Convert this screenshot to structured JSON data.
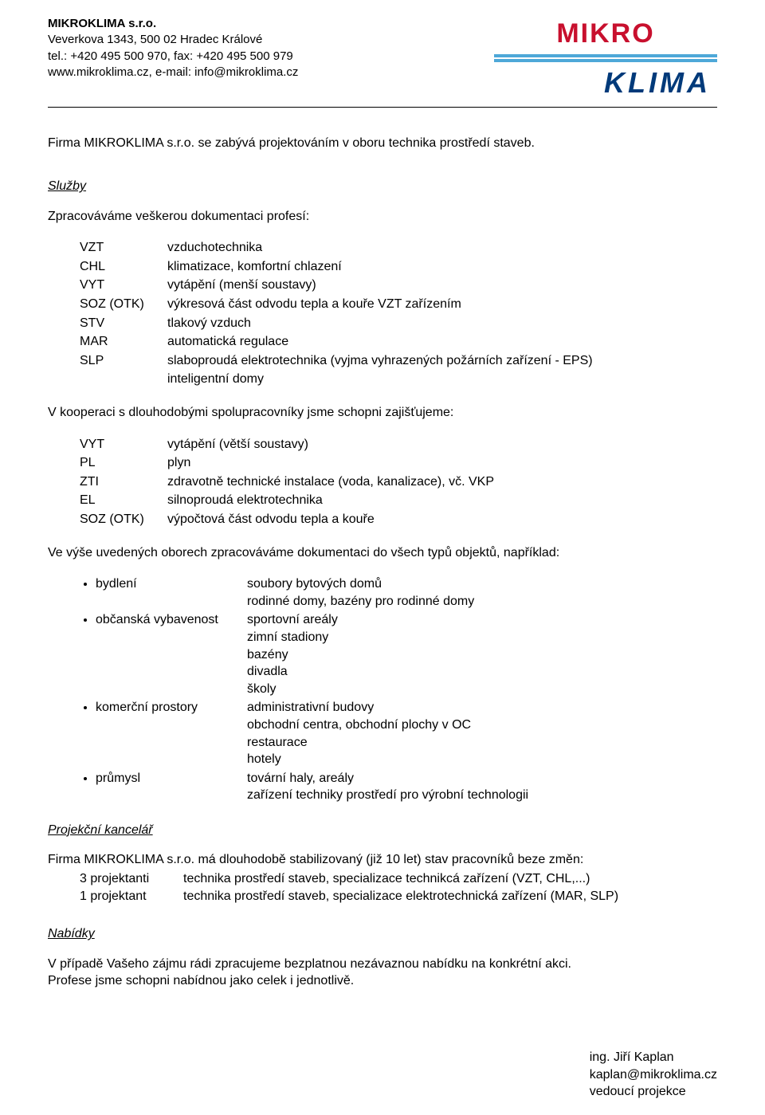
{
  "header": {
    "company": "MIKROKLIMA s.r.o.",
    "address": "Veverkova 1343, 500 02 Hradec Králové",
    "phone_line": "tel.: +420 495 500 970, fax: +420 495 500 979",
    "web_line": "www.mikroklima.cz, e-mail: info@mikroklima.cz"
  },
  "logo": {
    "mikro": "MIKRO",
    "klima": "KLIMA",
    "red": "#c8102e",
    "blue_bar": "#4ea8d8",
    "dark_blue": "#003a7a"
  },
  "intro": "Firma MIKROKLIMA s.r.o. se zabývá projektováním v oboru technika prostředí staveb.",
  "sections": {
    "sluzby_title": "Služby",
    "sluzby_intro": "Zpracováváme veškerou dokumentaci profesí:",
    "primary_list": [
      {
        "key": "VZT",
        "val": "vzduchotechnika"
      },
      {
        "key": "CHL",
        "val": "klimatizace, komfortní chlazení"
      },
      {
        "key": "VYT",
        "val": "vytápění (menší soustavy)"
      },
      {
        "key": "SOZ (OTK)",
        "val": "výkresová část odvodu tepla a kouře VZT zařízením"
      },
      {
        "key": "STV",
        "val": "tlakový vzduch"
      },
      {
        "key": "MAR",
        "val": "automatická regulace"
      },
      {
        "key": "SLP",
        "val": "slaboproudá elektrotechnika (vyjma vyhrazených požárních zařízení - EPS)"
      },
      {
        "key": "",
        "val": "inteligentní domy"
      }
    ],
    "coop_intro": "V kooperaci s dlouhodobými spolupracovníky jsme schopni zajišťujeme:",
    "coop_list": [
      {
        "key": "VYT",
        "val": "vytápění (větší soustavy)"
      },
      {
        "key": "PL",
        "val": "plyn"
      },
      {
        "key": "ZTI",
        "val": "zdravotně technické instalace (voda, kanalizace), vč. VKP"
      },
      {
        "key": "EL",
        "val": "silnoproudá elektrotechnika"
      },
      {
        "key": "SOZ (OTK)",
        "val": "výpočtová část odvodu tepla a kouře"
      }
    ],
    "fields_intro": "Ve výše uvedených oborech zpracováváme dokumentaci do všech typů objektů, například:",
    "fields": [
      {
        "label": "bydlení",
        "items": [
          "soubory bytových domů",
          "rodinné domy, bazény pro rodinné domy"
        ]
      },
      {
        "label": "občanská vybavenost",
        "items": [
          "sportovní areály",
          "zimní stadiony",
          "bazény",
          "divadla",
          "školy"
        ]
      },
      {
        "label": "komerční prostory",
        "items": [
          "administrativní budovy",
          "obchodní centra, obchodní plochy v OC",
          "restaurace",
          "hotely"
        ]
      },
      {
        "label": "průmysl",
        "items": [
          "tovární haly, areály",
          "zařízení techniky prostředí pro výrobní technologii"
        ]
      }
    ],
    "office_title": "Projekční kancelář",
    "office_intro": "Firma MIKROKLIMA s.r.o. má dlouhodobě stabilizovaný (již 10 let) stav pracovníků beze změn:",
    "staff": [
      {
        "key": "3 projektanti",
        "val": "technika prostředí staveb, specializace technikcá zařízení (VZT, CHL,...)"
      },
      {
        "key": "1 projektant",
        "val": "technika prostředí staveb, specializace elektrotechnická zařízení (MAR, SLP)"
      }
    ],
    "offers_title": "Nabídky",
    "offers_p1": "V případě Vašeho zájmu rádi zpracujeme bezplatnou nezávaznou nabídku na konkrétní akci.",
    "offers_p2": "Profese jsme schopni nabídnou jako celek i jednotlivě."
  },
  "signature": {
    "name": "ing. Jiří Kaplan",
    "email": "kaplan@mikroklima.cz",
    "role": "vedoucí projekce"
  }
}
